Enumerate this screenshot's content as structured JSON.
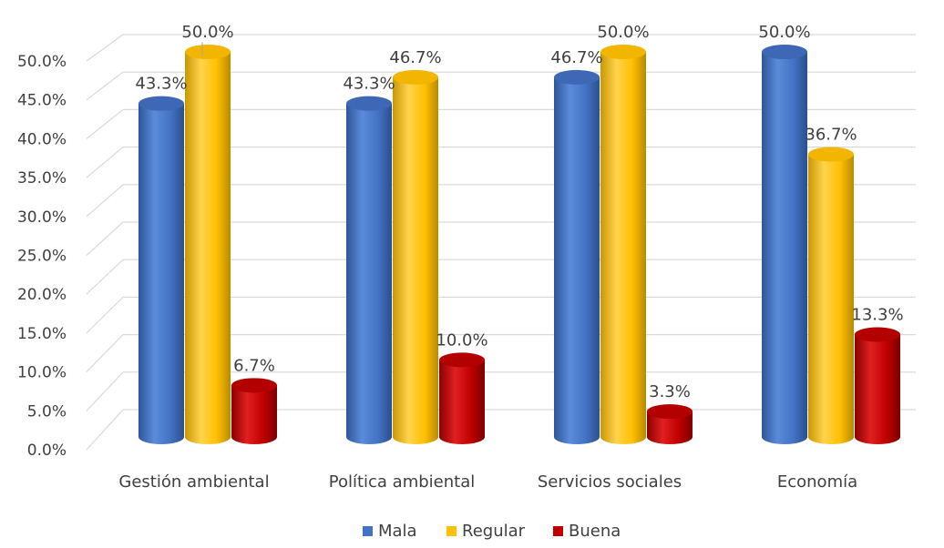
{
  "chart_data": {
    "type": "bar",
    "categories": [
      "Gestión ambiental",
      "Política ambiental",
      "Servicios sociales",
      "Economía"
    ],
    "series": [
      {
        "name": "Mala",
        "values": [
          43.3,
          43.3,
          46.7,
          50.0
        ],
        "labels": [
          "43.3%",
          "43.3%",
          "46.7%",
          "50.0%"
        ],
        "color": "#4472C4"
      },
      {
        "name": "Regular",
        "values": [
          50.0,
          46.7,
          50.0,
          36.7
        ],
        "labels": [
          "50.0%",
          "46.7%",
          "50.0%",
          "36.7%"
        ],
        "color": "#FFC000"
      },
      {
        "name": "Buena",
        "values": [
          6.7,
          10.0,
          3.3,
          13.3
        ],
        "labels": [
          "6.7%",
          "10.0%",
          "3.3%",
          "13.3%"
        ],
        "color": "#C00000"
      }
    ],
    "y_ticks": [
      "0.0%",
      "5.0%",
      "10.0%",
      "15.0%",
      "20.0%",
      "25.0%",
      "30.0%",
      "35.0%",
      "40.0%",
      "45.0%",
      "50.0%"
    ],
    "ylim": [
      0,
      50
    ],
    "grid": true,
    "legend_position": "bottom",
    "three_d": true
  }
}
